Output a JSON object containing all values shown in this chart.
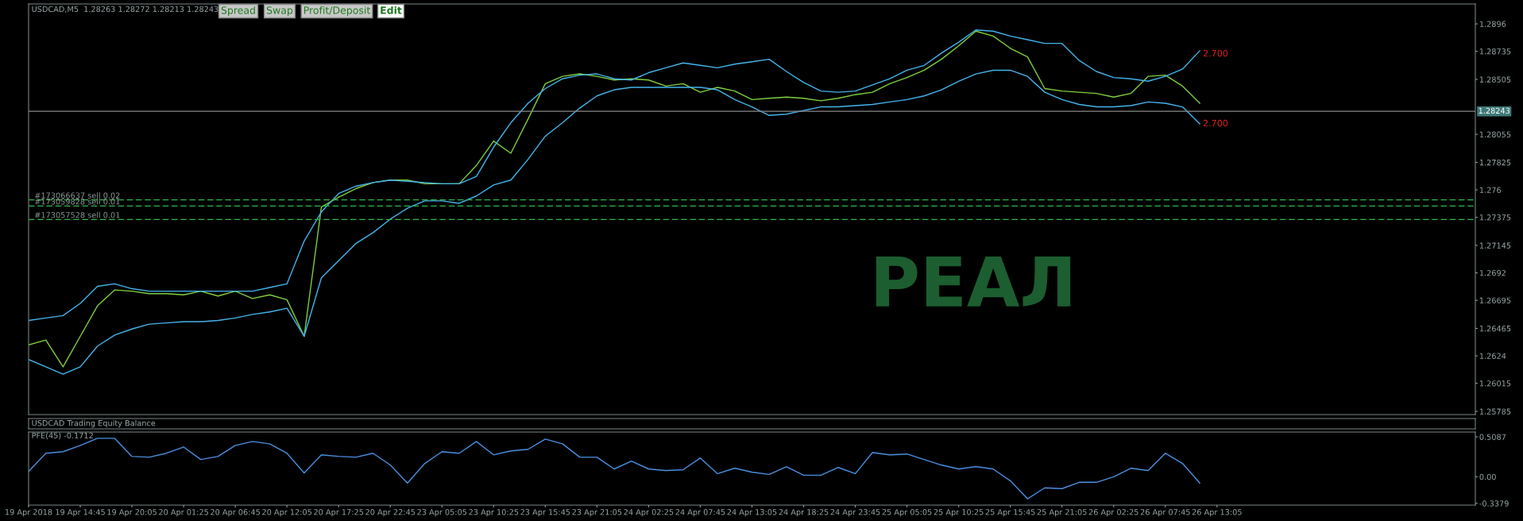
{
  "chart_data": [
    {
      "type": "line",
      "title": "USDCAD,M5  1.28263 1.28272 1.28213 1.28243",
      "annotations": [
        "Spread",
        "Swap",
        "Profit/Deposit",
        "Edit",
        "РЕАЛ",
        "2.700",
        "2.700"
      ],
      "series": [
        {
          "type": "line",
          "color": "#7fcf3f",
          "values": [
            1.2633,
            1.2637,
            1.2615,
            1.264,
            1.2665,
            1.2678,
            1.2677,
            1.2675,
            1.2675,
            1.2674,
            1.2677,
            1.2673,
            1.2677,
            1.2671,
            1.2674,
            1.267,
            1.264,
            1.2746,
            1.2754,
            1.2761,
            1.2766,
            1.2768,
            1.2768,
            1.2765,
            1.2765,
            1.2765,
            1.278,
            1.28,
            1.279,
            1.2818,
            1.2847,
            1.2853,
            1.2855,
            1.2853,
            1.285,
            1.2851,
            1.285,
            1.2845,
            1.2847,
            1.284,
            1.2844,
            1.2841,
            1.2834,
            1.2835,
            1.2836,
            1.2835,
            1.2833,
            1.2835,
            1.2838,
            1.284,
            1.2847,
            1.2852,
            1.2858,
            1.2867,
            1.2878,
            1.289,
            1.2886,
            1.2876,
            1.2869,
            1.2843,
            1.2841,
            1.284,
            1.2839,
            1.2836,
            1.2839,
            1.2853,
            1.2854,
            1.2845,
            1.2831,
            null,
            null,
            null,
            null,
            null,
            null,
            null,
            null,
            null,
            null,
            null,
            null,
            null,
            null,
            null,
            null
          ]
        },
        {
          "type": "line",
          "color": "#45b4ec",
          "values": [
            1.2653,
            1.2655,
            1.2657,
            1.2667,
            1.2681,
            1.2683,
            1.2679,
            1.2677,
            1.2677,
            1.2677,
            1.2677,
            1.2677,
            1.2677,
            1.2677,
            1.268,
            1.2683,
            1.2718,
            1.2742,
            1.2757,
            1.2763,
            1.2766,
            1.2768,
            1.2767,
            1.2766,
            1.2765,
            1.2765,
            1.2771,
            1.2795,
            1.2815,
            1.2831,
            1.2843,
            1.2851,
            1.2854,
            1.2855,
            1.2851,
            1.285,
            1.2856,
            1.286,
            1.2864,
            1.2862,
            1.286,
            1.2863,
            1.2865,
            1.2867,
            1.2857,
            1.2848,
            1.2841,
            1.284,
            1.2841,
            1.2846,
            1.2851,
            1.2858,
            1.2862,
            1.2872,
            1.2881,
            1.2891,
            1.289,
            1.2886,
            1.2883,
            1.288,
            1.288,
            1.2866,
            1.2857,
            1.2852,
            1.2851,
            1.2849,
            1.2853,
            1.2859,
            1.2874,
            null,
            null,
            null,
            null,
            null,
            null,
            null,
            null,
            null,
            null,
            null,
            null,
            null,
            null,
            null,
            null
          ]
        },
        {
          "type": "line",
          "color": "#45b4ec",
          "values": [
            1.2621,
            1.2615,
            1.2609,
            1.2615,
            1.2632,
            1.2641,
            1.2646,
            1.265,
            1.2651,
            1.2652,
            1.2652,
            1.2653,
            1.2655,
            1.2658,
            1.266,
            1.2663,
            1.264,
            1.2688,
            1.2702,
            1.2716,
            1.2725,
            1.2736,
            1.2745,
            1.2751,
            1.2751,
            1.2749,
            1.2755,
            1.2764,
            1.2768,
            1.2785,
            1.2804,
            1.2815,
            1.2827,
            1.2837,
            1.2842,
            1.2844,
            1.2844,
            1.2844,
            1.2844,
            1.2844,
            1.2842,
            1.2834,
            1.2828,
            1.2821,
            1.2822,
            1.2825,
            1.2828,
            1.2828,
            1.2829,
            1.283,
            1.2832,
            1.2834,
            1.2837,
            1.2842,
            1.2849,
            1.2855,
            1.2858,
            1.2858,
            1.2853,
            1.284,
            1.2834,
            1.283,
            1.2828,
            1.2828,
            1.2829,
            1.2832,
            1.2831,
            1.2828,
            1.2814,
            null,
            null,
            null,
            null,
            null,
            null,
            null,
            null,
            null,
            null,
            null,
            null,
            null,
            null,
            null,
            null
          ]
        }
      ],
      "ylim": [
        1.25759,
        1.29123
      ],
      "yticks": [
        1.25785,
        1.26015,
        1.2624,
        1.26465,
        1.26695,
        1.2692,
        1.27145,
        1.27375,
        1.276,
        1.27825,
        1.28055,
        1.28505,
        1.28735,
        1.2896
      ],
      "ref_lines": [
        {
          "axis": "y",
          "value": 1.28243,
          "label": "1.28243",
          "color": "#8a8a8a",
          "line_style": "solid"
        },
        {
          "axis": "y",
          "value": 1.27518,
          "label": "#173066637 sell 0.02",
          "color": "#2db84a",
          "line_style": "dashed"
        },
        {
          "axis": "y",
          "value": 1.27468,
          "label": "#173059828 sell 0.01",
          "color": "#2db84a",
          "line_style": "dashed"
        },
        {
          "axis": "y",
          "value": 1.27358,
          "label": "#173057528 sell 0.01",
          "color": "#2db84a",
          "line_style": "dashed"
        }
      ],
      "tick_labels": "y"
    },
    {
      "type": "other",
      "title": "USDCAD Trading Equity Balance"
    },
    {
      "type": "line",
      "title": "PFE(45) -0.1712",
      "categories": [
        "19 Apr 2018",
        null,
        null,
        "19 Apr 14:45",
        null,
        null,
        "19 Apr 20:05",
        null,
        null,
        "20 Apr 01:25",
        null,
        null,
        "20 Apr 06:45",
        null,
        null,
        "20 Apr 12:05",
        null,
        null,
        "20 Apr 17:25",
        null,
        null,
        "20 Apr 22:45",
        null,
        null,
        "23 Apr 05:05",
        null,
        null,
        "23 Apr 10:25",
        null,
        null,
        "23 Apr 15:45",
        null,
        null,
        "23 Apr 21:05",
        null,
        null,
        "24 Apr 02:25",
        null,
        null,
        "24 Apr 07:45",
        null,
        null,
        "24 Apr 13:05",
        null,
        null,
        "24 Apr 18:25",
        null,
        null,
        "24 Apr 23:45",
        null,
        null,
        "25 Apr 05:05",
        null,
        null,
        "25 Apr 10:25",
        null,
        null,
        "25 Apr 15:45",
        null,
        null,
        "25 Apr 21:05",
        null,
        null,
        "26 Apr 02:25",
        null,
        null,
        "26 Apr 07:45",
        null,
        null,
        "26 Apr 13:05",
        null,
        null,
        null,
        null,
        null,
        null,
        null,
        null,
        null,
        null,
        null,
        null,
        null,
        null,
        null
      ],
      "series": [
        {
          "type": "line",
          "color": "#4a8fe0",
          "values": [
            0.07,
            0.3,
            0.32,
            0.4,
            0.49,
            0.49,
            0.26,
            0.25,
            0.3,
            0.38,
            0.22,
            0.26,
            0.4,
            0.45,
            0.42,
            0.3,
            0.05,
            0.28,
            0.26,
            0.25,
            0.3,
            0.15,
            -0.08,
            0.17,
            0.32,
            0.3,
            0.45,
            0.28,
            0.33,
            0.35,
            0.48,
            0.42,
            0.25,
            0.25,
            0.1,
            0.2,
            0.1,
            0.08,
            0.09,
            0.24,
            0.04,
            0.11,
            0.06,
            0.03,
            0.13,
            0.02,
            0.02,
            0.12,
            0.04,
            0.31,
            0.28,
            0.29,
            0.22,
            0.15,
            0.1,
            0.13,
            0.1,
            -0.05,
            -0.28,
            -0.14,
            -0.15,
            -0.07,
            -0.07,
            0.0,
            0.11,
            0.08,
            0.3,
            0.17,
            -0.08,
            null,
            null,
            null,
            null,
            null,
            null,
            null,
            null,
            null,
            null,
            null,
            null,
            null,
            null,
            null,
            null
          ]
        }
      ],
      "ylim": [
        -0.36,
        0.57
      ],
      "yticks": [
        -0.3379,
        {
          "value": 0,
          "label": "0.00"
        },
        0.5087
      ]
    }
  ]
}
